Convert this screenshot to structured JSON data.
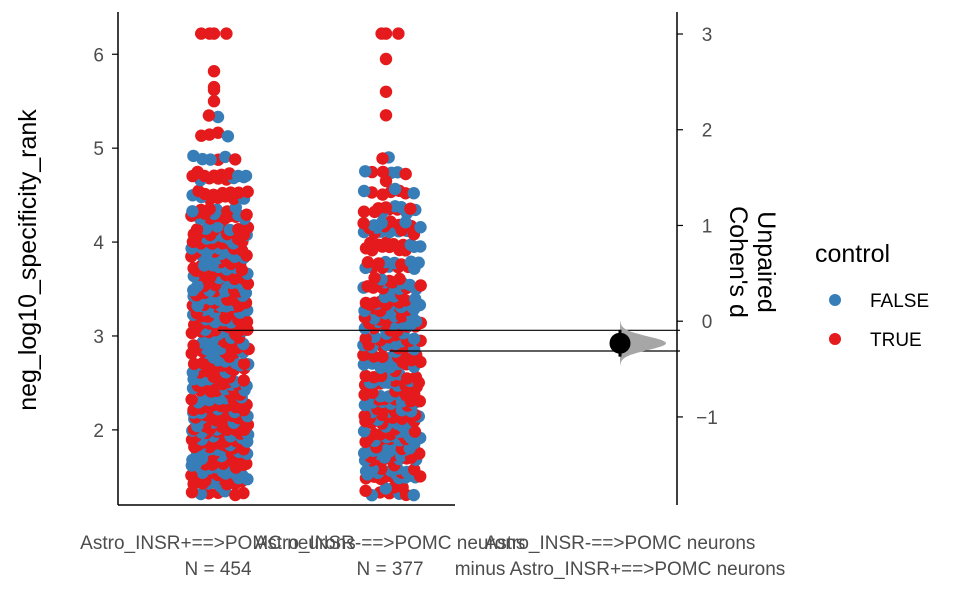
{
  "chart_data": {
    "type": "scatter",
    "style": "estimation-plot (swarm + effect size)",
    "ylabel": "neg_log10_specificity_rank",
    "ylim": [
      1.2,
      6.45
    ],
    "yticks": [
      2,
      3,
      4,
      5,
      6
    ],
    "categories": [
      {
        "name": "Astro_INSR+==>POMC neurons",
        "n_label": "N = 454",
        "mean": 3.06
      },
      {
        "name": "Astro_INSR-==>POMC neurons",
        "n_label": "N = 377",
        "mean": 2.84
      }
    ],
    "effect_axis": {
      "label_line1": "Unpaired",
      "label_line2": "Cohen's d",
      "ylim": [
        -1.92,
        3.23
      ],
      "ticks": [
        -1,
        0,
        1,
        2,
        3
      ],
      "contrast_label_line1": "Astro_INSR-==>POMC neurons",
      "contrast_label_line2": "minus Astro_INSR+==>POMC neurons",
      "effect_size": -0.23,
      "ci": [
        -0.37,
        -0.09
      ]
    },
    "legend": {
      "title": "control",
      "entries": [
        {
          "label": "FALSE",
          "color": "#377EB8"
        },
        {
          "label": "TRUE",
          "color": "#E41A1C"
        }
      ]
    },
    "group_distribution": [
      {
        "category": "Astro_INSR+==>POMC neurons",
        "bins": [
          {
            "y": 1.35,
            "count": 8
          },
          {
            "y": 1.5,
            "count": 22
          },
          {
            "y": 1.7,
            "count": 30
          },
          {
            "y": 1.9,
            "count": 34
          },
          {
            "y": 2.1,
            "count": 34
          },
          {
            "y": 2.3,
            "count": 26
          },
          {
            "y": 2.5,
            "count": 24
          },
          {
            "y": 2.7,
            "count": 24
          },
          {
            "y": 2.9,
            "count": 26
          },
          {
            "y": 3.1,
            "count": 28
          },
          {
            "y": 3.3,
            "count": 30
          },
          {
            "y": 3.5,
            "count": 30
          },
          {
            "y": 3.7,
            "count": 26
          },
          {
            "y": 3.9,
            "count": 24
          },
          {
            "y": 4.1,
            "count": 30
          },
          {
            "y": 4.3,
            "count": 20
          },
          {
            "y": 4.5,
            "count": 14
          },
          {
            "y": 4.7,
            "count": 14
          },
          {
            "y": 4.9,
            "count": 6
          },
          {
            "y": 5.15,
            "count": 4
          },
          {
            "y": 5.35,
            "count": 2
          }
        ],
        "true_fraction": 0.55,
        "outliers": [
          6.22,
          6.22,
          6.22,
          6.22,
          5.82,
          5.65,
          5.62,
          5.5
        ]
      },
      {
        "category": "Astro_INSR-==>POMC neurons",
        "bins": [
          {
            "y": 1.35,
            "count": 10
          },
          {
            "y": 1.55,
            "count": 22
          },
          {
            "y": 1.75,
            "count": 26
          },
          {
            "y": 1.95,
            "count": 24
          },
          {
            "y": 2.15,
            "count": 26
          },
          {
            "y": 2.35,
            "count": 22
          },
          {
            "y": 2.55,
            "count": 22
          },
          {
            "y": 2.75,
            "count": 22
          },
          {
            "y": 2.95,
            "count": 24
          },
          {
            "y": 3.15,
            "count": 26
          },
          {
            "y": 3.35,
            "count": 24
          },
          {
            "y": 3.55,
            "count": 18
          },
          {
            "y": 3.75,
            "count": 14
          },
          {
            "y": 3.95,
            "count": 14
          },
          {
            "y": 4.15,
            "count": 20
          },
          {
            "y": 4.35,
            "count": 12
          },
          {
            "y": 4.55,
            "count": 8
          },
          {
            "y": 4.75,
            "count": 6
          },
          {
            "y": 4.9,
            "count": 2
          }
        ],
        "true_fraction": 0.52,
        "outliers": [
          6.22,
          6.22,
          6.22,
          5.95,
          5.6,
          5.35,
          4.65
        ]
      }
    ]
  }
}
